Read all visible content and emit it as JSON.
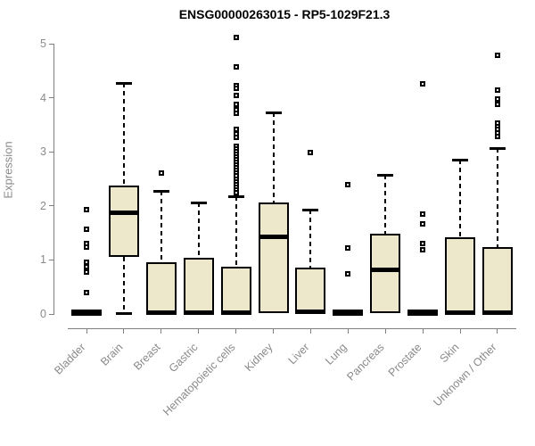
{
  "chart_data": {
    "type": "boxplot",
    "title": "ENSG00000263015 - RP5-1029F21.3",
    "ylabel": "Expression",
    "xlabel": "",
    "ylim": [
      0,
      5
    ],
    "yticks": [
      0,
      1,
      2,
      3,
      4,
      5
    ],
    "grid": false,
    "legend": false,
    "categories": [
      "Bladder",
      "Brain",
      "Breast",
      "Gastric",
      "Hematopoietic cells",
      "Kidney",
      "Liver",
      "Lung",
      "Pancreas",
      "Prostate",
      "Skin",
      "Unknown / Other"
    ],
    "series": [
      {
        "name": "Bladder",
        "collapsed": true,
        "q1": 0,
        "median": 0.02,
        "q3": 0.05,
        "whisker_low": 0,
        "whisker_high": 0.05,
        "outliers": [
          1.93,
          1.56,
          1.31,
          1.23,
          0.95,
          0.87,
          0.78,
          0.39
        ]
      },
      {
        "name": "Brain",
        "collapsed": false,
        "q1": 1.06,
        "median": 1.87,
        "q3": 2.37,
        "whisker_low": 0.02,
        "whisker_high": 4.28,
        "outliers": []
      },
      {
        "name": "Breast",
        "collapsed": false,
        "q1": 0.01,
        "median": 0.03,
        "q3": 0.96,
        "whisker_low": 0.01,
        "whisker_high": 2.28,
        "outliers": [
          2.6
        ]
      },
      {
        "name": "Gastric",
        "collapsed": false,
        "q1": 0.01,
        "median": 0.03,
        "q3": 1.04,
        "whisker_low": 0.01,
        "whisker_high": 2.07,
        "outliers": []
      },
      {
        "name": "Hematopoietic cells",
        "collapsed": false,
        "q1": 0.01,
        "median": 0.03,
        "q3": 0.88,
        "whisker_low": 0.01,
        "whisker_high": 2.17,
        "outliers": [
          5.11,
          4.57,
          4.23,
          4.17,
          4.05,
          3.87,
          3.78,
          3.72,
          3.42,
          3.34,
          3.27,
          3.1,
          3.05,
          3.0,
          2.95,
          2.9,
          2.85,
          2.8,
          2.75,
          2.7,
          2.65,
          2.6,
          2.55,
          2.5,
          2.45,
          2.4,
          2.35,
          2.3,
          2.25
        ]
      },
      {
        "name": "Kidney",
        "collapsed": false,
        "q1": 0.02,
        "median": 1.42,
        "q3": 2.06,
        "whisker_low": 0.02,
        "whisker_high": 3.73,
        "outliers": []
      },
      {
        "name": "Liver",
        "collapsed": false,
        "q1": 0.01,
        "median": 0.04,
        "q3": 0.86,
        "whisker_low": 0.01,
        "whisker_high": 1.93,
        "outliers": [
          2.99
        ]
      },
      {
        "name": "Lung",
        "collapsed": true,
        "q1": 0,
        "median": 0.02,
        "q3": 0.05,
        "whisker_low": 0,
        "whisker_high": 0.05,
        "outliers": [
          2.4,
          1.22,
          0.75
        ]
      },
      {
        "name": "Pancreas",
        "collapsed": false,
        "q1": 0.02,
        "median": 0.81,
        "q3": 1.48,
        "whisker_low": 0.02,
        "whisker_high": 2.58,
        "outliers": []
      },
      {
        "name": "Prostate",
        "collapsed": true,
        "q1": 0,
        "median": 0.02,
        "q3": 0.05,
        "whisker_low": 0,
        "whisker_high": 0.05,
        "outliers": [
          4.25,
          1.85,
          1.66,
          1.3,
          1.19
        ]
      },
      {
        "name": "Skin",
        "collapsed": false,
        "q1": 0.01,
        "median": 0.03,
        "q3": 1.42,
        "whisker_low": 0.01,
        "whisker_high": 2.86,
        "outliers": []
      },
      {
        "name": "Unknown / Other",
        "collapsed": false,
        "q1": 0.01,
        "median": 0.03,
        "q3": 1.23,
        "whisker_low": 0.01,
        "whisker_high": 3.07,
        "outliers": [
          4.78,
          4.14,
          3.98,
          3.87,
          3.53,
          3.47,
          3.41,
          3.35,
          3.29
        ]
      }
    ],
    "colors": {
      "box_fill": "#EDE8CC",
      "box_border": "#000000",
      "median": "#000000",
      "axis": "#808080",
      "tick_label": "#8a8a8a",
      "title": "#000000"
    }
  }
}
